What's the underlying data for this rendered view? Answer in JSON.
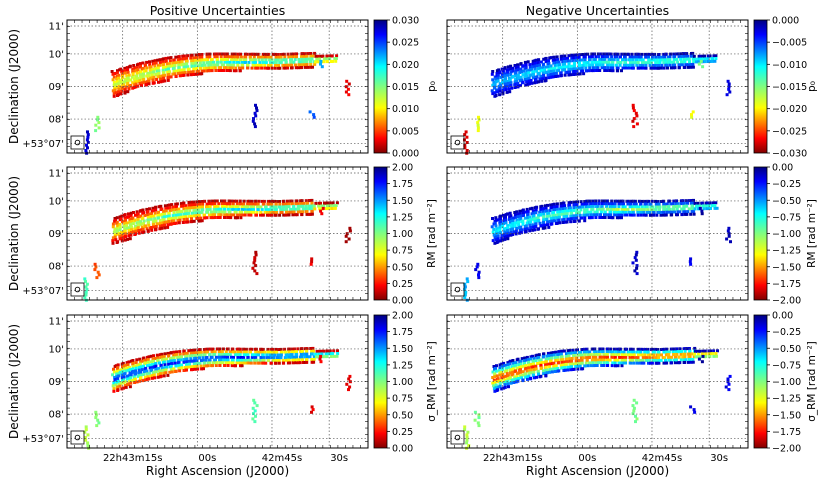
{
  "figure": {
    "xlabel": "Right Ascension (J2000)",
    "ylabel": "Declination (J2000)",
    "columns": [
      "Positive Uncertainties",
      "Negative Uncertainties"
    ],
    "ra_ticks": [
      "22h43m15s",
      "00s",
      "42m45s",
      "30s"
    ],
    "dec_ticks": [
      "11'",
      "10'",
      "09'",
      "08'",
      "+53°07'"
    ]
  },
  "chart_data": [
    {
      "type": "heatmap",
      "title": "Positive Uncertainties",
      "quantity": "p0",
      "colorbar_label": "p₀",
      "colorbar_range": [
        0.0,
        0.03
      ],
      "colorbar_ticks": [
        "0.030",
        "0.025",
        "0.020",
        "0.015",
        "0.010",
        "0.005",
        "0.000"
      ],
      "colormap": "jet",
      "xlabel": "",
      "ylabel": "Declination (J2000)"
    },
    {
      "type": "heatmap",
      "title": "Negative Uncertainties",
      "quantity": "p0",
      "colorbar_label": "p₀",
      "colorbar_range": [
        -0.03,
        0.0
      ],
      "colorbar_ticks": [
        "0.000",
        "−0.005",
        "−0.010",
        "−0.015",
        "−0.020",
        "−0.025",
        "−0.030"
      ],
      "colormap": "jet",
      "xlabel": "",
      "ylabel": ""
    },
    {
      "type": "heatmap",
      "title": "",
      "quantity": "RM",
      "colorbar_label": "RM [rad m⁻²]",
      "colorbar_range": [
        0.0,
        2.0
      ],
      "colorbar_ticks": [
        "2.00",
        "1.75",
        "1.50",
        "1.25",
        "1.00",
        "0.75",
        "0.50",
        "0.25",
        "0.00"
      ],
      "colormap": "jet",
      "xlabel": "",
      "ylabel": "Declination (J2000)"
    },
    {
      "type": "heatmap",
      "title": "",
      "quantity": "RM",
      "colorbar_label": "RM [rad m⁻²]",
      "colorbar_range": [
        -2.0,
        0.0
      ],
      "colorbar_ticks": [
        "0.00",
        "−0.25",
        "−0.50",
        "−0.75",
        "−1.00",
        "−1.25",
        "−1.50",
        "−1.75",
        "−2.00"
      ],
      "colormap": "jet",
      "xlabel": "",
      "ylabel": ""
    },
    {
      "type": "heatmap",
      "title": "",
      "quantity": "sigma_RM",
      "colorbar_label": "σ_RM [rad m⁻²]",
      "colorbar_range": [
        0.0,
        2.0
      ],
      "colorbar_ticks": [
        "2.00",
        "1.75",
        "1.50",
        "1.25",
        "1.00",
        "0.75",
        "0.50",
        "0.25",
        "0.00"
      ],
      "colormap": "jet",
      "xlabel": "Right Ascension (J2000)",
      "ylabel": "Declination (J2000)"
    },
    {
      "type": "heatmap",
      "title": "",
      "quantity": "sigma_RM",
      "colorbar_label": "σ_RM [rad m⁻²]",
      "colorbar_range": [
        -2.0,
        0.0
      ],
      "colorbar_ticks": [
        "0.00",
        "−0.25",
        "−0.50",
        "−0.75",
        "−1.00",
        "−1.25",
        "−1.50",
        "−1.75",
        "−2.00"
      ],
      "colormap": "jet",
      "xlabel": "Right Ascension (J2000)",
      "ylabel": ""
    }
  ]
}
